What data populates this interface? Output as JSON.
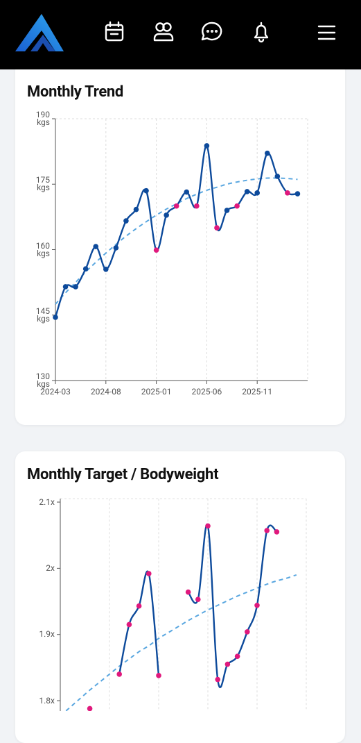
{
  "chart_data": [
    {
      "type": "line",
      "title": "Monthly Trend",
      "categories": [
        "2024-03",
        null,
        null,
        null,
        null,
        "2024-08",
        null,
        null,
        null,
        null,
        "2025-01",
        null,
        null,
        null,
        null,
        "2025-06",
        null,
        null,
        null,
        null,
        "2025-11",
        null,
        null,
        null,
        null
      ],
      "values": [
        144.5,
        151.5,
        151.5,
        155.6,
        160.7,
        155.5,
        160.4,
        166.6,
        169.2,
        173.5,
        159.9,
        167.9,
        170,
        173.2,
        170,
        183.8,
        165,
        169,
        170,
        173.3,
        173,
        182.1,
        176.8,
        173,
        172.8
      ],
      "marker_colors": [
        "#0d4a9b",
        "#0d4a9b",
        "#0d4a9b",
        "#0d4a9b",
        "#0d4a9b",
        "#0d4a9b",
        "#0d4a9b",
        "#0d4a9b",
        "#0d4a9b",
        "#0d4a9b",
        "#e0197d",
        "#0d4a9b",
        "#e0197d",
        "#0d4a9b",
        "#e0197d",
        "#0d4a9b",
        "#e0197d",
        "#0d4a9b",
        "#e0197d",
        "#0d4a9b",
        "#0d4a9b",
        "#0d4a9b",
        "#0d4a9b",
        "#e0197d",
        "#0d4a9b"
      ],
      "color": "#0d4a9b",
      "trend": [
        147.5,
        150.1,
        152.5,
        154.9,
        157.1,
        159.2,
        161.2,
        163.1,
        164.8,
        166.4,
        167.9,
        169.3,
        170.5,
        171.7,
        172.7,
        173.6,
        174.3,
        175.0,
        175.5,
        175.9,
        176.2,
        176.4,
        176.4,
        176.3,
        176.1
      ],
      "trend_color": "#5aa7e0",
      "ylim": [
        130,
        190
      ],
      "yticks": [
        {
          "value": 130,
          "label": "130 kgs"
        },
        {
          "value": 145,
          "label": "145 kgs"
        },
        {
          "value": 160,
          "label": "160 kgs"
        },
        {
          "value": 175,
          "label": "175 kgs"
        },
        {
          "value": 190,
          "label": "190 kgs"
        }
      ],
      "grid": true
    },
    {
      "type": "line",
      "title": "Monthly Target / Bodyweight",
      "categories": [
        null,
        null,
        null,
        null,
        null,
        null,
        null,
        null,
        null,
        null,
        null,
        null,
        null,
        null,
        null,
        null,
        null,
        null,
        null,
        null,
        null,
        null,
        null,
        null,
        null
      ],
      "values": [
        null,
        null,
        null,
        1.788,
        null,
        null,
        1.84,
        1.915,
        1.943,
        1.992,
        1.838,
        null,
        null,
        1.964,
        1.953,
        2.064,
        1.832,
        1.855,
        1.867,
        1.904,
        1.944,
        2.057,
        2.055,
        null,
        null
      ],
      "marker_colors": [
        "#e0197d",
        "#e0197d",
        "#e0197d",
        "#e0197d",
        "#e0197d",
        "#e0197d",
        "#e0197d",
        "#e0197d",
        "#e0197d",
        "#e0197d",
        "#e0197d",
        "#e0197d",
        "#e0197d",
        "#e0197d",
        "#e0197d",
        "#e0197d",
        "#e0197d",
        "#e0197d",
        "#e0197d",
        "#e0197d",
        "#e0197d",
        "#e0197d",
        "#e0197d",
        "#e0197d",
        "#e0197d"
      ],
      "color": "#0d4a9b",
      "trend": [
        1.777,
        1.79,
        1.803,
        1.816,
        1.828,
        1.84,
        1.852,
        1.863,
        1.874,
        1.883,
        1.894,
        1.903,
        1.912,
        1.921,
        1.929,
        1.937,
        1.944,
        1.951,
        1.958,
        1.964,
        1.97,
        1.976,
        1.981,
        1.985,
        1.99
      ],
      "trend_color": "#5aa7e0",
      "ylim": [
        1.75,
        2.105
      ],
      "yticks": [
        {
          "value": 1.8,
          "label": "1.8x"
        },
        {
          "value": 1.9,
          "label": "1.9x"
        },
        {
          "value": 2,
          "label": "2x"
        },
        {
          "value": 2.1,
          "label": "2.1x"
        }
      ],
      "grid": true
    }
  ]
}
